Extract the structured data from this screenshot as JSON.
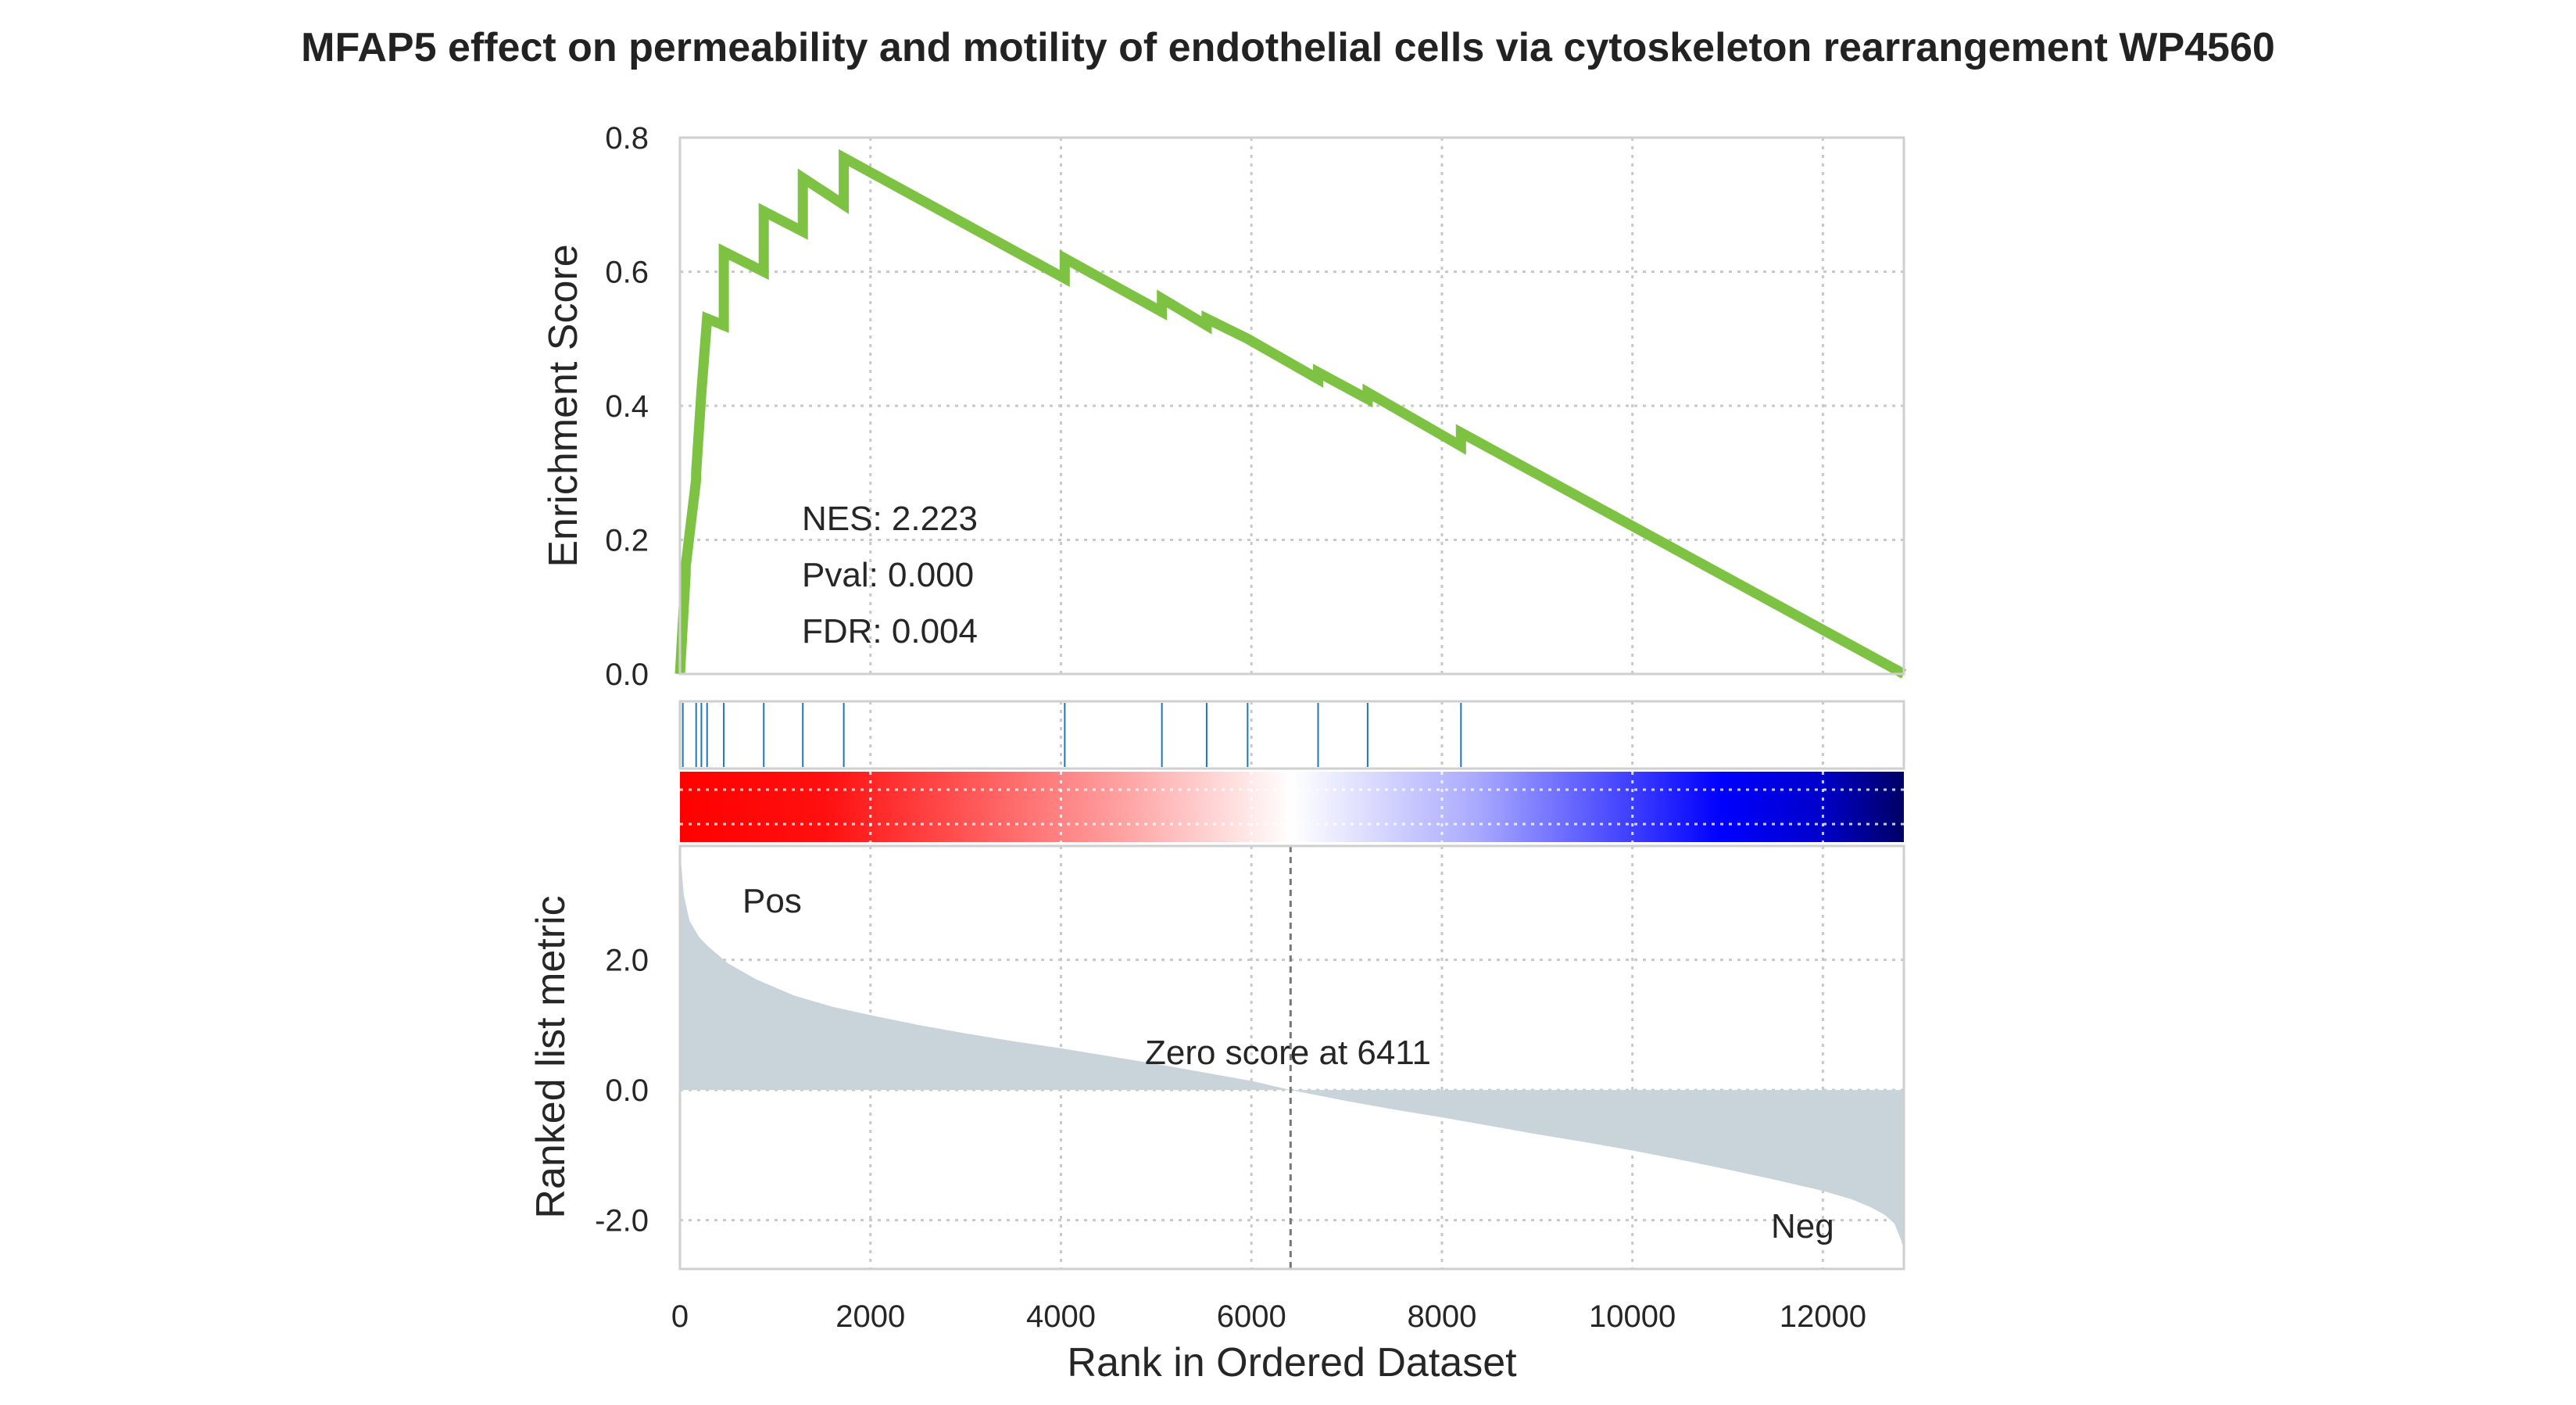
{
  "chart_data": {
    "type": "line",
    "title": "MFAP5 effect on permeability and motility of endothelial cells via cytoskeleton rearrangement WP4560",
    "xlabel": "Rank in Ordered Dataset",
    "xlim": [
      0,
      12850
    ],
    "xticks": [
      "0",
      "2000",
      "4000",
      "6000",
      "8000",
      "10000",
      "12000"
    ],
    "grid": true,
    "enrichment": {
      "ylabel": "Enrichment Score",
      "ylim": [
        0,
        0.8
      ],
      "yticks": [
        "0.0",
        "0.2",
        "0.4",
        "0.6",
        "0.8"
      ],
      "color": "#7dc243",
      "x": [
        0,
        60,
        60,
        170,
        170,
        225,
        225,
        285,
        285,
        460,
        460,
        880,
        880,
        1290,
        1290,
        1720,
        1720,
        4040,
        4040,
        5060,
        5060,
        5530,
        5530,
        5960,
        5960,
        6700,
        6700,
        7220,
        7220,
        8200,
        8200,
        12850
      ],
      "y": [
        0,
        0.15,
        0.16,
        0.29,
        0.3,
        0.42,
        0.42,
        0.53,
        0.53,
        0.52,
        0.63,
        0.6,
        0.69,
        0.66,
        0.74,
        0.7,
        0.77,
        0.59,
        0.62,
        0.54,
        0.56,
        0.52,
        0.53,
        0.5,
        0.5,
        0.44,
        0.45,
        0.41,
        0.42,
        0.34,
        0.36,
        0
      ]
    },
    "stats": {
      "nes": "NES: 2.223",
      "pval": "Pval: 0.000",
      "fdr": "FDR: 0.004"
    },
    "hits": [
      30,
      170,
      225,
      285,
      460,
      880,
      1290,
      1720,
      4040,
      5060,
      5530,
      5960,
      6700,
      7220,
      8200
    ],
    "hit_color": "#1f77b4",
    "heatmap_colors": [
      "#ff0000",
      "#ffffff",
      "#0000ff",
      "#000066"
    ],
    "ranked": {
      "ylabel": "Ranked list metric",
      "ylim": [
        -2.75,
        3.75
      ],
      "yticks": [
        "2.0",
        "0.0",
        "-2.0"
      ],
      "fill_color": "#c9d3da",
      "x": [
        0,
        40,
        100,
        200,
        300,
        500,
        800,
        1200,
        1600,
        2000,
        2500,
        3000,
        3500,
        4000,
        4500,
        5000,
        5500,
        6000,
        6411,
        7000,
        7500,
        8000,
        8500,
        9000,
        9500,
        10000,
        10500,
        11000,
        11500,
        12000,
        12300,
        12500,
        12650,
        12750,
        12820,
        12850
      ],
      "y": [
        3.7,
        3.0,
        2.6,
        2.35,
        2.2,
        1.95,
        1.7,
        1.45,
        1.28,
        1.15,
        1.0,
        0.87,
        0.75,
        0.64,
        0.52,
        0.4,
        0.27,
        0.14,
        0.0,
        -0.17,
        -0.3,
        -0.42,
        -0.55,
        -0.68,
        -0.8,
        -0.93,
        -1.07,
        -1.22,
        -1.38,
        -1.55,
        -1.68,
        -1.8,
        -1.92,
        -2.05,
        -2.3,
        -2.45
      ]
    },
    "zero_score_label": "Zero score at 6411",
    "zero_x": 6411,
    "pos_label": "Pos",
    "pos_color": "#ff0000",
    "neg_label": "Neg",
    "neg_color": "#0000ff"
  }
}
